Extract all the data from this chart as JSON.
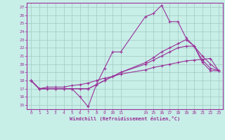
{
  "background_color": "#c8eee8",
  "grid_color": "#a0c8c0",
  "line_color": "#993399",
  "xlabel": "Windchill (Refroidissement éolien,°C)",
  "xlim": [
    -0.5,
    23.5
  ],
  "ylim": [
    14.5,
    27.5
  ],
  "yticks": [
    15,
    16,
    17,
    18,
    19,
    20,
    21,
    22,
    23,
    24,
    25,
    26,
    27
  ],
  "xtick_labels": [
    "0",
    "1",
    "2",
    "3",
    "4",
    "5",
    "6",
    "7",
    "8",
    "9",
    "1011",
    "",
    "14151617181920212223"
  ],
  "series1": [
    [
      0,
      18.0
    ],
    [
      1,
      17.0
    ],
    [
      2,
      17.0
    ],
    [
      3,
      17.0
    ],
    [
      4,
      17.0
    ],
    [
      5,
      17.0
    ],
    [
      6,
      16.0
    ],
    [
      7,
      14.8
    ],
    [
      8,
      17.5
    ],
    [
      9,
      19.5
    ],
    [
      10,
      21.5
    ],
    [
      11,
      21.5
    ],
    [
      14,
      25.8
    ],
    [
      15,
      26.2
    ],
    [
      16,
      27.2
    ],
    [
      17,
      25.2
    ],
    [
      18,
      25.2
    ],
    [
      19,
      23.2
    ],
    [
      20,
      22.2
    ],
    [
      21,
      20.2
    ],
    [
      22,
      19.2
    ],
    [
      23,
      19.2
    ]
  ],
  "series2": [
    [
      0,
      18.0
    ],
    [
      1,
      17.0
    ],
    [
      2,
      17.0
    ],
    [
      3,
      17.0
    ],
    [
      4,
      17.0
    ],
    [
      5,
      17.0
    ],
    [
      6,
      17.0
    ],
    [
      7,
      17.0
    ],
    [
      8,
      17.5
    ],
    [
      9,
      18.0
    ],
    [
      10,
      18.5
    ],
    [
      11,
      19.0
    ],
    [
      14,
      20.2
    ],
    [
      15,
      20.8
    ],
    [
      16,
      21.5
    ],
    [
      17,
      22.0
    ],
    [
      18,
      22.5
    ],
    [
      19,
      23.0
    ],
    [
      20,
      22.2
    ],
    [
      21,
      20.5
    ],
    [
      22,
      19.5
    ],
    [
      23,
      19.2
    ]
  ],
  "series3": [
    [
      0,
      18.0
    ],
    [
      1,
      17.0
    ],
    [
      2,
      17.0
    ],
    [
      3,
      17.0
    ],
    [
      4,
      17.0
    ],
    [
      5,
      17.0
    ],
    [
      6,
      17.0
    ],
    [
      7,
      17.0
    ],
    [
      8,
      17.5
    ],
    [
      9,
      18.0
    ],
    [
      10,
      18.5
    ],
    [
      11,
      19.0
    ],
    [
      14,
      20.0
    ],
    [
      15,
      20.5
    ],
    [
      16,
      21.0
    ],
    [
      17,
      21.5
    ],
    [
      18,
      22.0
    ],
    [
      19,
      22.2
    ],
    [
      20,
      22.2
    ],
    [
      21,
      21.0
    ],
    [
      22,
      20.0
    ],
    [
      23,
      19.2
    ]
  ],
  "series4": [
    [
      0,
      18.0
    ],
    [
      1,
      17.0
    ],
    [
      2,
      17.2
    ],
    [
      3,
      17.2
    ],
    [
      4,
      17.2
    ],
    [
      5,
      17.4
    ],
    [
      6,
      17.5
    ],
    [
      7,
      17.7
    ],
    [
      8,
      18.0
    ],
    [
      9,
      18.3
    ],
    [
      10,
      18.5
    ],
    [
      11,
      18.8
    ],
    [
      14,
      19.3
    ],
    [
      15,
      19.6
    ],
    [
      16,
      19.8
    ],
    [
      17,
      20.0
    ],
    [
      18,
      20.2
    ],
    [
      19,
      20.4
    ],
    [
      20,
      20.5
    ],
    [
      21,
      20.6
    ],
    [
      22,
      20.7
    ],
    [
      23,
      19.2
    ]
  ]
}
